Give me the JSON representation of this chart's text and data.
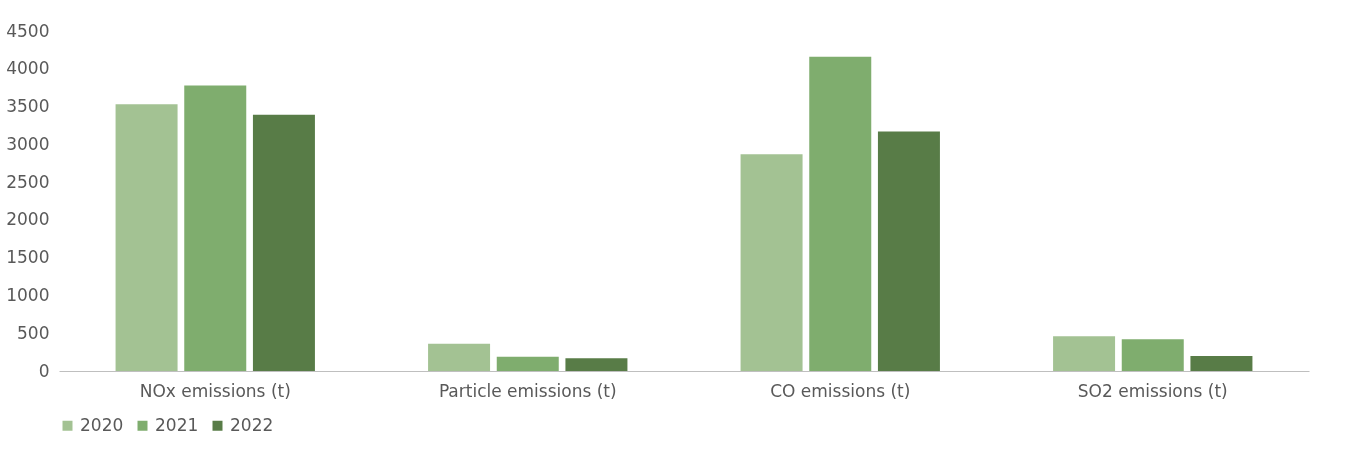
{
  "chart_data": {
    "type": "bar",
    "categories": [
      "NOx emissions (t)",
      "Particle emissions (t)",
      "CO emissions (t)",
      "SO2 emissions (t)"
    ],
    "series": [
      {
        "name": "2020",
        "color": "#a3c293",
        "values": [
          3530,
          360,
          2870,
          460
        ]
      },
      {
        "name": "2021",
        "color": "#7fad6e",
        "values": [
          3780,
          190,
          4160,
          420
        ]
      },
      {
        "name": "2022",
        "color": "#587c47",
        "values": [
          3390,
          170,
          3170,
          200
        ]
      }
    ],
    "ylim": [
      0,
      4500
    ],
    "yticks": [
      0,
      500,
      1000,
      1500,
      2000,
      2500,
      3000,
      3500,
      4000,
      4500
    ],
    "grid": false,
    "legend": "bottom"
  }
}
